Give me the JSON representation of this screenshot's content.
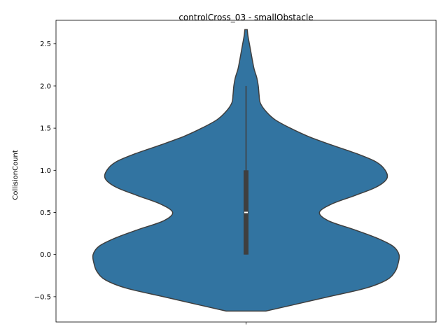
{
  "chart_data": {
    "type": "violin",
    "title": "controlCross_03 - smallObstacle",
    "xlabel": "",
    "ylabel": "CollisionCount",
    "ylim": [
      -0.8,
      2.78
    ],
    "y_ticks": [
      -0.5,
      0.0,
      0.5,
      1.0,
      1.5,
      2.0,
      2.5
    ],
    "y_tick_labels": [
      "−0.5",
      "0.0",
      "0.5",
      "1.0",
      "1.5",
      "2.0",
      "2.5"
    ],
    "grid": false,
    "fill_color": "#3274a1",
    "edge_color": "#3f3f3f",
    "series": [
      {
        "values_observed": [
          0,
          1,
          2
        ],
        "kde_extent": [
          -0.67,
          2.67
        ],
        "kde_profile": [
          {
            "y": -0.67,
            "w": 0.13
          },
          {
            "y": -0.6,
            "w": 0.3
          },
          {
            "y": -0.5,
            "w": 0.54
          },
          {
            "y": -0.4,
            "w": 0.78
          },
          {
            "y": -0.3,
            "w": 0.92
          },
          {
            "y": -0.2,
            "w": 0.975
          },
          {
            "y": -0.1,
            "w": 0.995
          },
          {
            "y": 0.0,
            "w": 1.0
          },
          {
            "y": 0.1,
            "w": 0.96
          },
          {
            "y": 0.2,
            "w": 0.85
          },
          {
            "y": 0.3,
            "w": 0.7
          },
          {
            "y": 0.4,
            "w": 0.54
          },
          {
            "y": 0.5,
            "w": 0.48
          },
          {
            "y": 0.6,
            "w": 0.56
          },
          {
            "y": 0.7,
            "w": 0.71
          },
          {
            "y": 0.8,
            "w": 0.85
          },
          {
            "y": 0.9,
            "w": 0.92
          },
          {
            "y": 1.0,
            "w": 0.91
          },
          {
            "y": 1.1,
            "w": 0.85
          },
          {
            "y": 1.2,
            "w": 0.72
          },
          {
            "y": 1.3,
            "w": 0.56
          },
          {
            "y": 1.4,
            "w": 0.41
          },
          {
            "y": 1.5,
            "w": 0.29
          },
          {
            "y": 1.6,
            "w": 0.19
          },
          {
            "y": 1.7,
            "w": 0.13
          },
          {
            "y": 1.8,
            "w": 0.093
          },
          {
            "y": 1.9,
            "w": 0.085
          },
          {
            "y": 2.0,
            "w": 0.08
          },
          {
            "y": 2.1,
            "w": 0.07
          },
          {
            "y": 2.2,
            "w": 0.053
          },
          {
            "y": 2.3,
            "w": 0.042
          },
          {
            "y": 2.4,
            "w": 0.032
          },
          {
            "y": 2.5,
            "w": 0.022
          },
          {
            "y": 2.6,
            "w": 0.012
          },
          {
            "y": 2.67,
            "w": 0.008
          }
        ],
        "box": {
          "q1": 0.0,
          "median": 0.5,
          "q3": 1.0,
          "whisker_low": 0.0,
          "whisker_high": 2.0
        }
      }
    ]
  }
}
